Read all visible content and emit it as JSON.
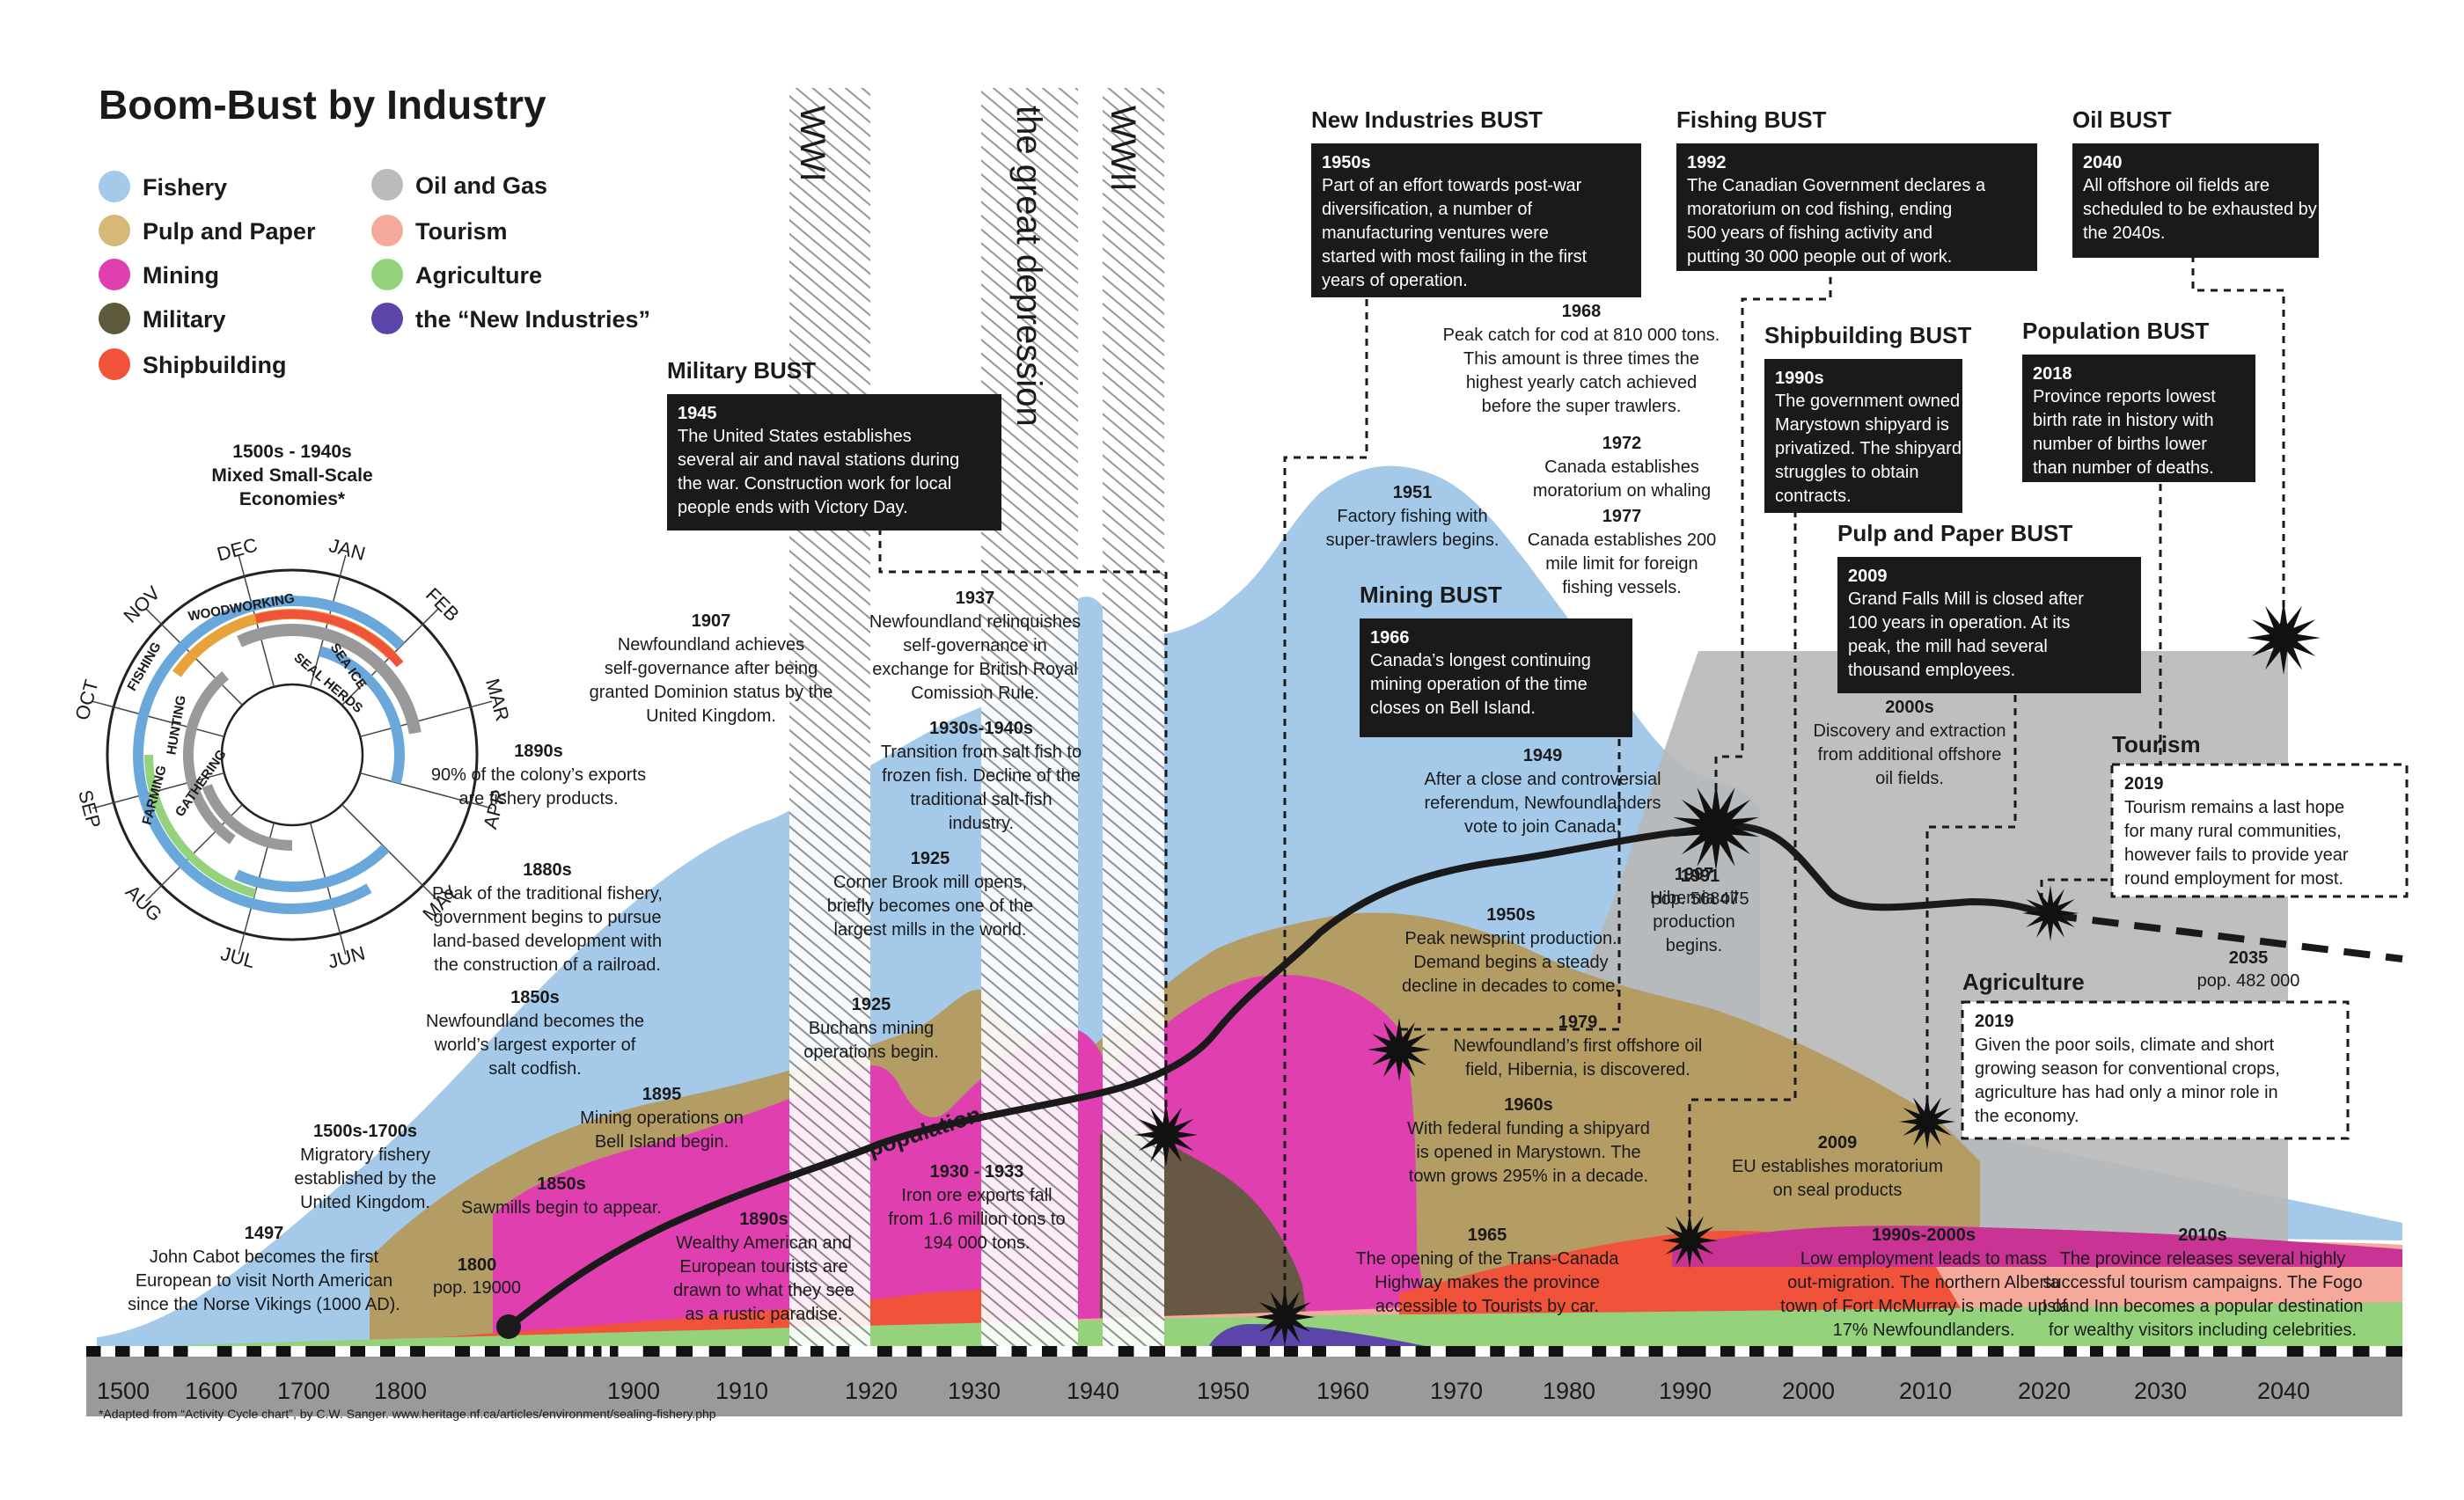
{
  "title": "Boom-Bust by Industry",
  "legend": [
    {
      "label": "Fishery",
      "color": "#a4c9e9"
    },
    {
      "label": "Pulp and Paper",
      "color": "#d8b878"
    },
    {
      "label": "Mining",
      "color": "#e03fb0"
    },
    {
      "label": "Military",
      "color": "#5c5a3a"
    },
    {
      "label": "Shipbuilding",
      "color": "#f0533a"
    },
    {
      "label": "Oil and Gas",
      "color": "#bbbbbb"
    },
    {
      "label": "Tourism",
      "color": "#f4a99b"
    },
    {
      "label": "Agriculture",
      "color": "#95d27c"
    },
    {
      "label": "the “New Industries”",
      "color": "#5b45a8"
    }
  ],
  "wheel": {
    "title": [
      "1500s - 1940s",
      "Mixed Small-Scale",
      "Economies*"
    ],
    "months": [
      "JAN",
      "FEB",
      "MAR",
      "APR",
      "MAY",
      "JUN",
      "JUL",
      "AUG",
      "SEP",
      "OCT",
      "NOV",
      "DEC"
    ],
    "rings": [
      "WOODWORKING",
      "SEA ICE",
      "SEAL HERDS",
      "FISHING",
      "HUNTING",
      "FARMING",
      "GATHERING"
    ]
  },
  "war_labels": {
    "ww1": "WWI",
    "depression": "the great depression",
    "ww2": "WWII"
  },
  "population_label": "population",
  "footnote": "*Adapted from “Activity Cycle chart”, by C.W. Sanger. www.heritage.nf.ca/articles/environment/sealing-fishery.php",
  "chart_data": {
    "type": "area",
    "title": "Boom-Bust by Industry",
    "x_ticks": [
      1500,
      1600,
      1700,
      1800,
      1900,
      1910,
      1920,
      1930,
      1940,
      1950,
      1960,
      1970,
      1980,
      1990,
      2000,
      2010,
      2020,
      2030,
      2040
    ],
    "series": [
      {
        "name": "Fishery",
        "color": "#a4c9e9"
      },
      {
        "name": "Pulp and Paper",
        "color": "#d8b878"
      },
      {
        "name": "Mining",
        "color": "#e03fb0"
      },
      {
        "name": "Military",
        "color": "#5c5a3a"
      },
      {
        "name": "Shipbuilding",
        "color": "#f0533a"
      },
      {
        "name": "Oil and Gas",
        "color": "#bbbbbb"
      },
      {
        "name": "Tourism",
        "color": "#f4a99b"
      },
      {
        "name": "Agriculture",
        "color": "#95d27c"
      },
      {
        "name": "the “New Industries”",
        "color": "#5b45a8"
      }
    ],
    "population": [
      {
        "year": 1800,
        "pop": 19000,
        "label": [
          "1800",
          "pop. 19000"
        ]
      },
      {
        "year": 1991,
        "pop": 568475,
        "label": [
          "1991",
          "pop. 568475"
        ]
      },
      {
        "year": 2035,
        "pop": 482000,
        "label": [
          "2035",
          "pop. 482 000"
        ]
      }
    ]
  },
  "annotations": [
    {
      "year": "1497",
      "lines": [
        "John Cabot becomes the first",
        "European to visit North American",
        "since the Norse Vikings (1000 AD)."
      ]
    },
    {
      "year": "1500s-1700s",
      "lines": [
        "Migratory fishery",
        "established by the",
        "United Kingdom."
      ]
    },
    {
      "year": "1850s",
      "lines": [
        "Sawmills begin to appear."
      ]
    },
    {
      "year": "1850s",
      "lines": [
        "Newfoundland becomes the",
        "world’s largest exporter of",
        "salt codfish."
      ]
    },
    {
      "year": "1880s",
      "lines": [
        "Peak of the traditional fishery,",
        "government begins to pursue",
        "land-based development with",
        "the construction of a railroad."
      ]
    },
    {
      "year": "1890s",
      "lines": [
        "90% of the colony’s exports",
        "are fishery products."
      ]
    },
    {
      "year": "1907",
      "lines": [
        "Newfoundland achieves",
        "self-governance after being",
        "granted Dominion status by the",
        "United Kingdom."
      ]
    },
    {
      "year": "1895",
      "lines": [
        "Mining operations on",
        "Bell Island begin."
      ]
    },
    {
      "year": "1890s",
      "lines": [
        "Wealthy American and",
        "European tourists are",
        "drawn to what they see",
        "as a rustic paradise."
      ]
    },
    {
      "year": "1925",
      "lines": [
        "Buchans mining",
        "operations begin."
      ]
    },
    {
      "year": "1925",
      "lines": [
        "Corner Brook mill opens,",
        "briefly becomes one of the",
        "largest mills in the world."
      ]
    },
    {
      "year": "1930s-1940s",
      "lines": [
        "Transition from salt fish to",
        "frozen fish. Decline of the",
        "traditional salt-fish",
        "industry."
      ]
    },
    {
      "year": "1937",
      "lines": [
        "Newfoundland relinquishes",
        "self-governance in",
        "exchange for British Royal",
        "Comission Rule."
      ]
    },
    {
      "year": "1930 - 1933",
      "lines": [
        "Iron ore exports fall",
        "from 1.6 million tons to",
        "194 000 tons."
      ]
    },
    {
      "year": "1951",
      "lines": [
        "Factory fishing with",
        "super-trawlers begins."
      ]
    },
    {
      "year": "1968",
      "lines": [
        "Peak catch for cod at 810 000 tons.",
        "This amount is three times the",
        "highest yearly catch achieved",
        "before the super trawlers."
      ]
    },
    {
      "year": "1972",
      "lines": [
        "Canada establishes",
        "moratorium on whaling"
      ]
    },
    {
      "year": "1977",
      "lines": [
        "Canada establishes 200",
        "mile limit for foreign",
        "fishing vessels."
      ]
    },
    {
      "year": "1949",
      "lines": [
        "After a close and controversial",
        "referendum, Newfoundlanders",
        "vote to join Canada."
      ]
    },
    {
      "year": "1950s",
      "lines": [
        "Peak newsprint production.",
        "Demand begins a steady",
        "decline in decades to come."
      ]
    },
    {
      "year": "1979",
      "lines": [
        "Newfoundland’s first offshore oil",
        "field, Hibernia, is discovered."
      ]
    },
    {
      "year": "1960s",
      "lines": [
        "With federal funding a shipyard",
        "is opened in Marystown. The",
        "town grows 295% in a decade."
      ]
    },
    {
      "year": "1965",
      "lines": [
        "The opening of the Trans-Canada",
        "Highway makes the province",
        "accessible to Tourists by car."
      ]
    },
    {
      "year": "1997",
      "lines": [
        "Hibernia oil",
        "production",
        "begins."
      ]
    },
    {
      "year": "2000s",
      "lines": [
        "Discovery and extraction",
        "from additional offshore",
        "oil fields."
      ]
    },
    {
      "year": "2009",
      "lines": [
        "EU establishes moratorium",
        "on seal products"
      ]
    },
    {
      "year": "1990s-2000s",
      "lines": [
        "Low employment leads to mass",
        "out-migration. The northern Alberta",
        "town of Fort McMurray is made up of",
        "17% Newfoundlanders."
      ]
    },
    {
      "year": "2010s",
      "lines": [
        "The province releases several highly",
        "successful tourism campaigns. The Fogo",
        "Island Inn becomes a popular destination",
        "for wealthy visitors including celebrities."
      ]
    }
  ],
  "busts": [
    {
      "heading": "Military BUST",
      "year": "1945",
      "lines": [
        "The United States establishes",
        "several air and naval stations during",
        "the war. Construction work for local",
        "people ends with Victory Day."
      ]
    },
    {
      "heading": "New Industries BUST",
      "year": "1950s",
      "lines": [
        "Part of an effort towards post-war",
        "diversification, a number of",
        "manufacturing ventures were",
        "started with most failing in the first",
        "years of operation."
      ]
    },
    {
      "heading": "Fishing BUST",
      "year": "1992",
      "lines": [
        "The Canadian Government declares a",
        "moratorium on cod fishing, ending",
        "500 years of fishing activity and",
        "putting 30 000 people out of work."
      ]
    },
    {
      "heading": "Oil BUST",
      "year": "2040",
      "lines": [
        "All offshore oil fields are",
        "scheduled to be exhausted by",
        "the 2040s."
      ]
    },
    {
      "heading": "Shipbuilding BUST",
      "year": "1990s",
      "lines": [
        "The government owned",
        "Marystown shipyard is",
        "privatized. The shipyard",
        "struggles to obtain",
        "contracts."
      ]
    },
    {
      "heading": "Population BUST",
      "year": "2018",
      "lines": [
        "Province reports lowest",
        "birth rate in history with",
        "number of births lower",
        "than number of deaths."
      ]
    },
    {
      "heading": "Mining BUST",
      "year": "1966",
      "lines": [
        "Canada’s longest continuing",
        "mining operation of the time",
        "closes on Bell Island."
      ]
    },
    {
      "heading": "Pulp and Paper BUST",
      "year": "2009",
      "lines": [
        "Grand Falls Mill is closed after",
        "100 years in operation. At its",
        "peak, the mill had several",
        "thousand employees."
      ]
    }
  ],
  "dashed_boxes": [
    {
      "heading": "Tourism",
      "year": "2019",
      "lines": [
        "Tourism remains a last hope",
        "for many rural communities,",
        "however fails to provide year",
        "round employment for most."
      ]
    },
    {
      "heading": "Agriculture",
      "year": "2019",
      "lines": [
        "Given the poor soils, climate and short",
        "growing season for conventional crops,",
        "agriculture has had only a minor role in",
        "the economy."
      ]
    }
  ]
}
